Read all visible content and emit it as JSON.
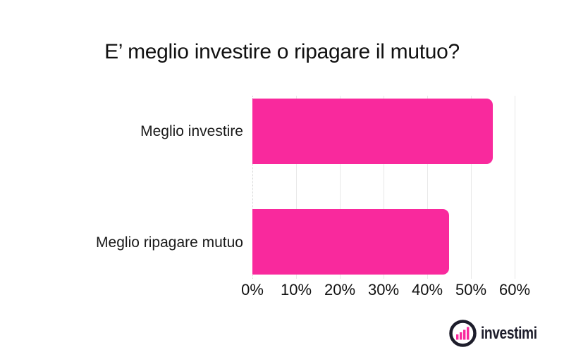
{
  "title": "E’ meglio investire o ripagare il mutuo?",
  "chart_data": {
    "type": "bar",
    "orientation": "horizontal",
    "title": "E’ meglio investire o ripagare il mutuo?",
    "categories": [
      "Meglio investire",
      "Meglio ripagare mutuo"
    ],
    "values": [
      55,
      45
    ],
    "value_unit": "%",
    "xlim": [
      0,
      60
    ],
    "x_ticks": [
      "0%",
      "10%",
      "20%",
      "30%",
      "40%",
      "50%",
      "60%"
    ],
    "grid": true,
    "zero_line_style": "dotted",
    "legend": false,
    "bar_color": "#F9299D",
    "grid_color": "#E8E8E8",
    "text_color": "#1A1A1A"
  },
  "branding": {
    "logo_text": "investimi",
    "logo_icon": "bar-chart-circle-icon",
    "logo_text_color": "#1D1D2B",
    "logo_accent_color": "#F9299D"
  }
}
